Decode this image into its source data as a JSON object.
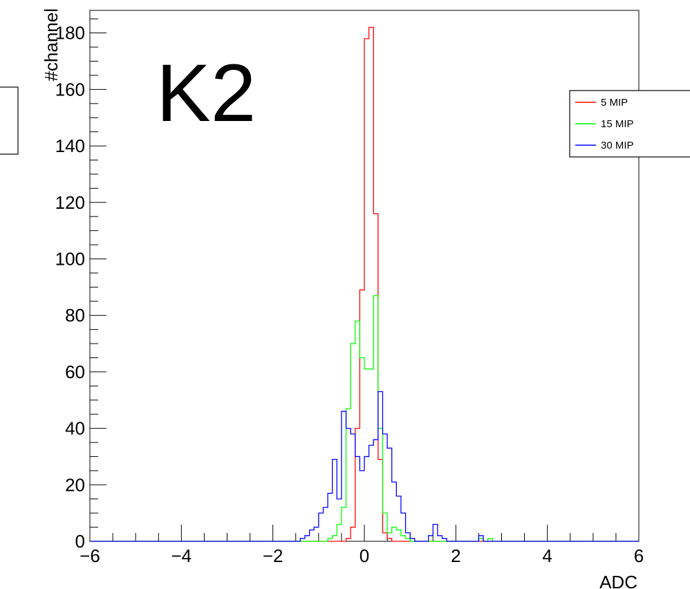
{
  "chart_data": {
    "type": "histogram",
    "title": "",
    "label": "K2",
    "xlabel": "ADC",
    "ylabel": "#channel",
    "xlim": [
      -6,
      6
    ],
    "ylim": [
      0,
      188
    ],
    "x_ticks": [
      -6,
      -4,
      -2,
      0,
      2,
      4,
      6
    ],
    "x_tick_labels": [
      "−6",
      "−4",
      "−2",
      "0",
      "2",
      "4",
      "6"
    ],
    "y_ticks": [
      0,
      20,
      40,
      60,
      80,
      100,
      120,
      140,
      160,
      180
    ],
    "y_tick_labels": [
      "0",
      "20",
      "40",
      "60",
      "80",
      "100",
      "120",
      "140",
      "160",
      "180"
    ],
    "bin_width": 0.1,
    "legend_position": "top-right",
    "series": [
      {
        "name": "5 MIP",
        "color": "#ff0000",
        "bins": [
          {
            "x": -0.4,
            "y": 1
          },
          {
            "x": -0.3,
            "y": 5
          },
          {
            "x": -0.2,
            "y": 40
          },
          {
            "x": -0.1,
            "y": 89
          },
          {
            "x": 0.0,
            "y": 178
          },
          {
            "x": 0.1,
            "y": 182
          },
          {
            "x": 0.2,
            "y": 116
          },
          {
            "x": 0.3,
            "y": 29
          },
          {
            "x": 0.4,
            "y": 3
          },
          {
            "x": 0.5,
            "y": 1
          }
        ]
      },
      {
        "name": "15 MIP",
        "color": "#00ff00",
        "bins": [
          {
            "x": -0.8,
            "y": 1
          },
          {
            "x": -0.7,
            "y": 2
          },
          {
            "x": -0.6,
            "y": 6
          },
          {
            "x": -0.5,
            "y": 12
          },
          {
            "x": -0.4,
            "y": 47
          },
          {
            "x": -0.3,
            "y": 70
          },
          {
            "x": -0.2,
            "y": 78
          },
          {
            "x": -0.1,
            "y": 65
          },
          {
            "x": 0.0,
            "y": 61
          },
          {
            "x": 0.1,
            "y": 61
          },
          {
            "x": 0.2,
            "y": 87
          },
          {
            "x": 0.3,
            "y": 40
          },
          {
            "x": 0.4,
            "y": 10
          },
          {
            "x": 0.5,
            "y": 3
          },
          {
            "x": 0.6,
            "y": 5
          },
          {
            "x": 0.7,
            "y": 4
          },
          {
            "x": 0.8,
            "y": 2
          },
          {
            "x": 0.9,
            "y": 1
          },
          {
            "x": 2.5,
            "y": 1
          },
          {
            "x": 2.7,
            "y": 1
          }
        ]
      },
      {
        "name": "30 MIP",
        "color": "#0000ff",
        "bins": [
          {
            "x": -1.4,
            "y": 1
          },
          {
            "x": -1.3,
            "y": 2
          },
          {
            "x": -1.2,
            "y": 4
          },
          {
            "x": -1.1,
            "y": 5
          },
          {
            "x": -1.0,
            "y": 10
          },
          {
            "x": -0.9,
            "y": 12
          },
          {
            "x": -0.8,
            "y": 17
          },
          {
            "x": -0.7,
            "y": 29
          },
          {
            "x": -0.6,
            "y": 15
          },
          {
            "x": -0.5,
            "y": 46
          },
          {
            "x": -0.4,
            "y": 40
          },
          {
            "x": -0.3,
            "y": 38
          },
          {
            "x": -0.2,
            "y": 30
          },
          {
            "x": -0.1,
            "y": 25
          },
          {
            "x": 0.0,
            "y": 30
          },
          {
            "x": 0.1,
            "y": 34
          },
          {
            "x": 0.2,
            "y": 36
          },
          {
            "x": 0.3,
            "y": 53
          },
          {
            "x": 0.4,
            "y": 38
          },
          {
            "x": 0.5,
            "y": 33
          },
          {
            "x": 0.6,
            "y": 21
          },
          {
            "x": 0.7,
            "y": 16
          },
          {
            "x": 0.8,
            "y": 10
          },
          {
            "x": 0.9,
            "y": 3
          },
          {
            "x": 1.0,
            "y": 1
          },
          {
            "x": 1.4,
            "y": 2
          },
          {
            "x": 1.5,
            "y": 6
          },
          {
            "x": 1.6,
            "y": 2
          },
          {
            "x": 1.7,
            "y": 1
          },
          {
            "x": 2.5,
            "y": 2
          }
        ]
      }
    ]
  }
}
